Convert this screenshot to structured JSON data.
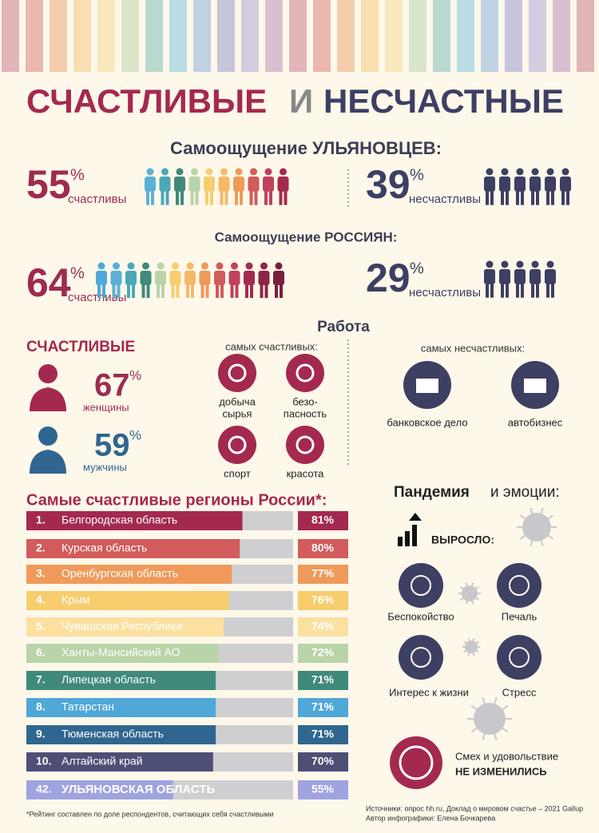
{
  "header": {
    "title_happy": "СЧАСТЛИВЫЕ",
    "title_and": "И",
    "title_unhappy": "НЕСЧАСТНЫЕ"
  },
  "ulyanovsk": {
    "title": "Самоощущение УЛЬЯНОВЦЕВ:",
    "happy": {
      "value": "55",
      "pct": "%",
      "label": "счастливы"
    },
    "unhappy": {
      "value": "39",
      "pct": "%",
      "label": "несчастливы"
    }
  },
  "russia": {
    "title": "Самоощущение РОССИЯН:",
    "happy": {
      "value": "64",
      "pct": "%",
      "label": "счастливы"
    },
    "unhappy": {
      "value": "29",
      "pct": "%",
      "label": "несчастливы"
    }
  },
  "work": {
    "title": "Работа",
    "happy_title": "СЧАСТЛИВЫЕ",
    "women": {
      "value": "67",
      "pct": "%",
      "label": "женщины"
    },
    "men": {
      "value": "59",
      "pct": "%",
      "label": "мужчины"
    },
    "happiest_title": "самых счастливых:",
    "happiest": [
      [
        "добыча",
        "сырья"
      ],
      [
        "безо-",
        "пасность"
      ],
      [
        "спорт"
      ],
      [
        "красота"
      ]
    ],
    "unhappiest_title": "самых несчастливых:",
    "unhappiest": [
      "банковское дело",
      "автобизнес"
    ]
  },
  "regions": {
    "title": "Самые счастливые регионы России*:",
    "xlim": [
      0,
      100
    ],
    "items": [
      {
        "rank": "1.",
        "name": "Белгородская область",
        "value": 81,
        "label": "81%"
      },
      {
        "rank": "2.",
        "name": "Курская область",
        "value": 80,
        "label": "80%"
      },
      {
        "rank": "3.",
        "name": "Оренбургская область",
        "value": 77,
        "label": "77%"
      },
      {
        "rank": "4.",
        "name": "Крым",
        "value": 76,
        "label": "76%"
      },
      {
        "rank": "5.",
        "name": "Чувашская Республика",
        "value": 74,
        "label": "74%"
      },
      {
        "rank": "6.",
        "name": "Ханты-Мансийский АО",
        "value": 72,
        "label": "72%"
      },
      {
        "rank": "7.",
        "name": "Липецкая область",
        "value": 71,
        "label": "71%"
      },
      {
        "rank": "8.",
        "name": "Татарстан",
        "value": 71,
        "label": "71%"
      },
      {
        "rank": "9.",
        "name": "Тюменская область",
        "value": 71,
        "label": "71%"
      },
      {
        "rank": "10.",
        "name": "Алтайский край",
        "value": 70,
        "label": "70%"
      },
      {
        "rank": "42.",
        "name": "УЛЬЯНОВСКАЯ ОБЛАСТЬ",
        "value": 55,
        "label": "55%"
      }
    ],
    "footnote": "*Рейтинг составлен по доле респондентов, считающих себя счастливыми"
  },
  "pandemic": {
    "title_bold": "Пандемия",
    "title_rest": "и эмоции:",
    "grew": "ВЫРОСЛО:",
    "emotions": [
      "Беспокойство",
      "Печаль",
      "Интерес к жизни",
      "Стресс"
    ],
    "same_label": "Смех и удовольствие",
    "same_status": "НЕ ИЗМЕНИЛИСЬ"
  },
  "footer": {
    "sources": "Источники: опрос hh.ru, Доклад о мировом счастье – 2021 Gallup",
    "author": "Автор инфографики: Елена Бочкарева"
  }
}
